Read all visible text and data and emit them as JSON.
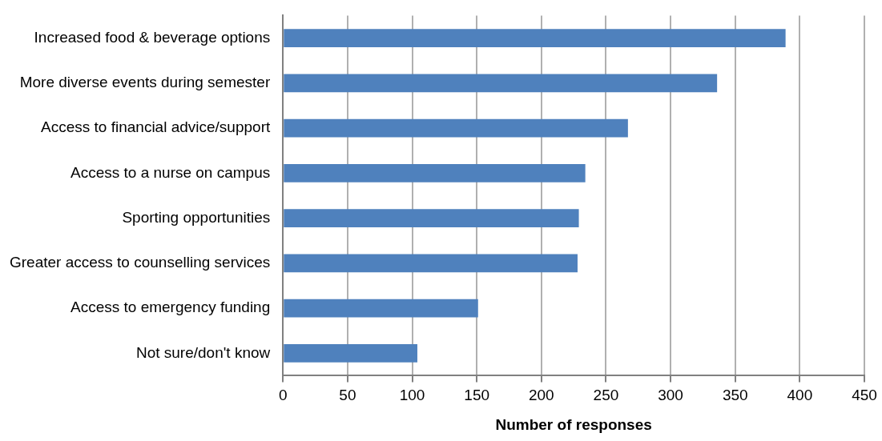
{
  "chart_data": {
    "type": "bar",
    "orientation": "horizontal",
    "xlabel": "Number of responses",
    "categories": [
      "Increased food & beverage options",
      "More diverse events during semester",
      "Access to financial advice/support",
      "Access to a nurse on campus",
      "Sporting opportunities",
      "Greater access to counselling services",
      "Access to emergency funding",
      "Not sure/don't know"
    ],
    "values": [
      389,
      336,
      267,
      234,
      229,
      228,
      151,
      104
    ],
    "color": "#4f81bd",
    "xlim": [
      0,
      450
    ],
    "xticks": [
      0,
      50,
      100,
      150,
      200,
      250,
      300,
      350,
      400,
      450
    ],
    "grid": "x",
    "legend": false
  }
}
